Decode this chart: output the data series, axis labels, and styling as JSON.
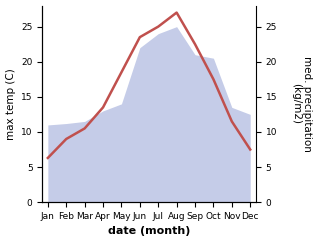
{
  "months": [
    "Jan",
    "Feb",
    "Mar",
    "Apr",
    "May",
    "Jun",
    "Jul",
    "Aug",
    "Sep",
    "Oct",
    "Nov",
    "Dec"
  ],
  "x": [
    0,
    1,
    2,
    3,
    4,
    5,
    6,
    7,
    8,
    9,
    10,
    11
  ],
  "temperature": [
    6.3,
    9.0,
    10.5,
    13.5,
    18.5,
    23.5,
    25.0,
    27.0,
    22.5,
    17.5,
    11.5,
    7.5
  ],
  "precipitation": [
    11.0,
    11.2,
    11.5,
    13.0,
    14.0,
    22.0,
    24.0,
    25.0,
    21.0,
    20.5,
    13.5,
    12.5
  ],
  "temp_color": "#c0504d",
  "precip_fill_color": "#c5cce8",
  "ylabel_left": "max temp (C)",
  "ylabel_right": "med. precipitation\n(kg/m2)",
  "xlabel": "date (month)",
  "ylim_left": [
    0,
    28
  ],
  "ylim_right": [
    0,
    28
  ],
  "yticks_left": [
    0,
    5,
    10,
    15,
    20,
    25
  ],
  "yticks_right": [
    0,
    5,
    10,
    15,
    20,
    25
  ],
  "label_fontsize": 7.5,
  "tick_fontsize": 6.5,
  "xlabel_fontsize": 8,
  "linewidth": 1.8
}
